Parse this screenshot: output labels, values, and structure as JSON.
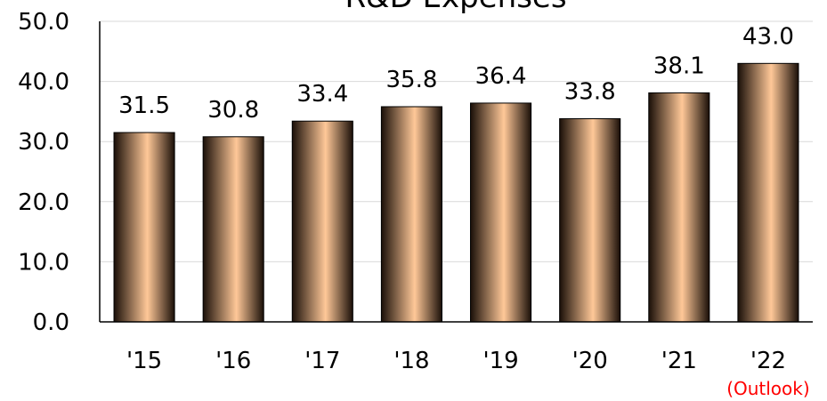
{
  "chart_data": {
    "type": "bar",
    "title": "R&D Expenses",
    "categories": [
      "'15",
      "'16",
      "'17",
      "'18",
      "'19",
      "'20",
      "'21",
      "'22"
    ],
    "values": [
      31.5,
      30.8,
      33.4,
      35.8,
      36.4,
      33.8,
      38.1,
      43.0
    ],
    "value_labels": [
      "31.5",
      "30.8",
      "33.4",
      "35.8",
      "36.4",
      "33.8",
      "38.1",
      "43.0"
    ],
    "ylim": [
      0,
      50
    ],
    "yticks": [
      0,
      10,
      20,
      30,
      40,
      50
    ],
    "ytick_labels": [
      "0.0",
      "10.0",
      "20.0",
      "30.0",
      "40.0",
      "50.0"
    ],
    "xlabel": "",
    "ylabel": "",
    "grid": true,
    "annotations": [
      {
        "category": "'22",
        "text": "(Outlook)",
        "color": "#ff0000"
      }
    ],
    "bar_gradient": [
      "#1a0f08",
      "#ffc898",
      "#1a0f08"
    ]
  }
}
